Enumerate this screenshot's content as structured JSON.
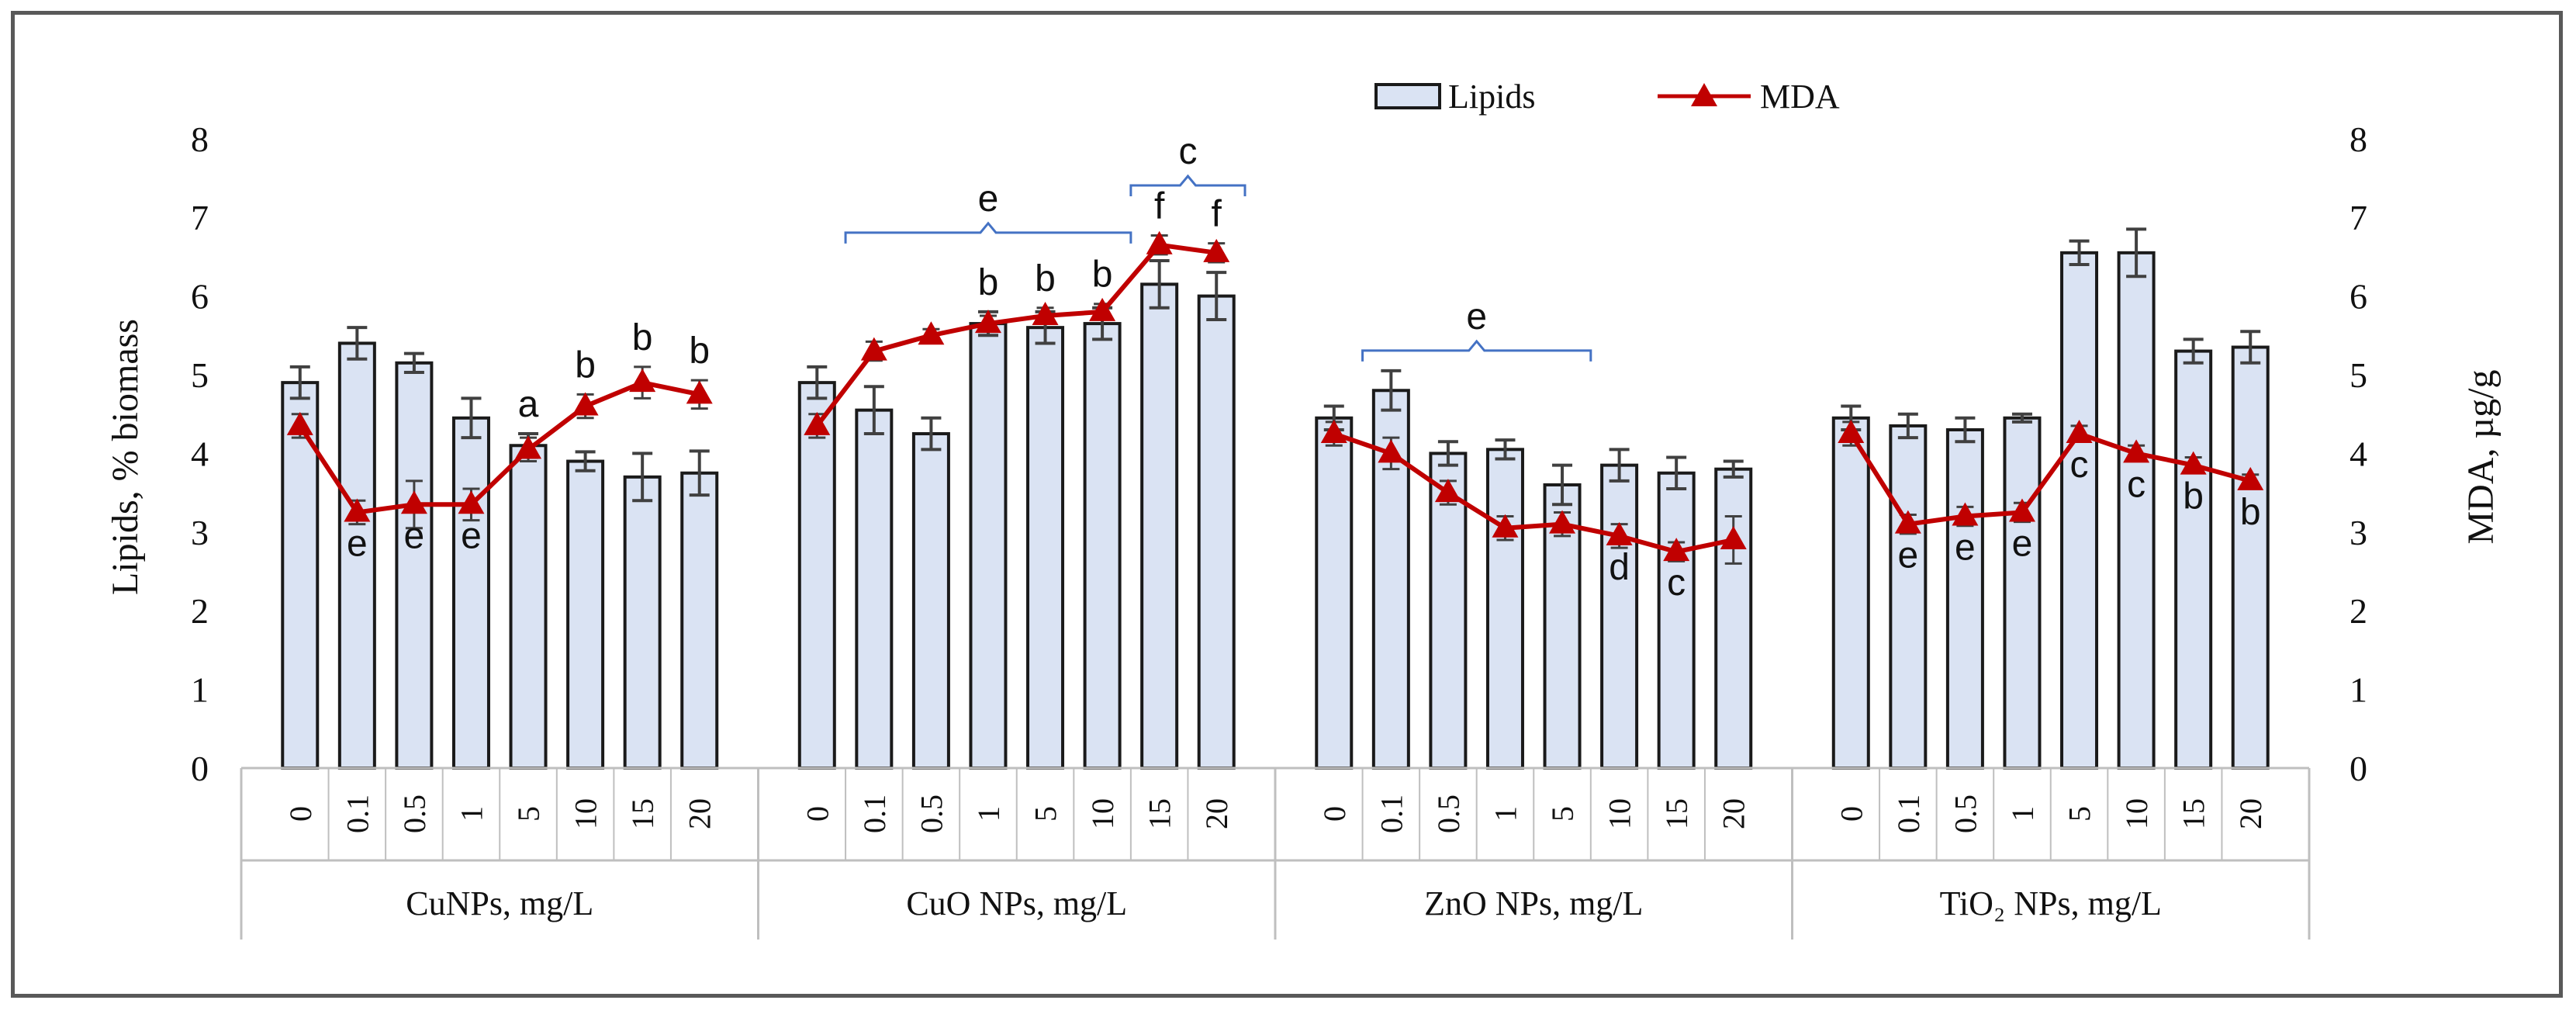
{
  "chart_data": {
    "type": "bar",
    "ylabel_left": "Lipids, % biomass",
    "ylabel_right": "MDA, µg/g",
    "ylim_left": [
      0,
      8
    ],
    "ylim_right": [
      0,
      8
    ],
    "yticks_left": [
      "0",
      "1",
      "2",
      "3",
      "4",
      "5",
      "6",
      "7",
      "8"
    ],
    "yticks_right": [
      "0",
      "1",
      "2",
      "3",
      "4",
      "5",
      "6",
      "7",
      "8"
    ],
    "grid": false,
    "legend_position": "top-center",
    "legend": {
      "bars": "Lipids",
      "line": "MDA"
    },
    "colors": {
      "bar_fill": "#DAE3F3",
      "bar_edge": "#1a1a1a",
      "line": "#C00000",
      "bracket": "#4472C4",
      "axis": "#BFBFBF"
    },
    "concentration_labels": [
      "0",
      "0.1",
      "0.5",
      "1",
      "5",
      "10",
      "15",
      "20"
    ],
    "groups": [
      {
        "name": "CuNPs, mg/L",
        "lipids": [
          4.9,
          5.4,
          5.15,
          4.45,
          4.1,
          3.9,
          3.7,
          3.75
        ],
        "lipids_err": [
          0.2,
          0.2,
          0.12,
          0.25,
          0.15,
          0.12,
          0.3,
          0.28
        ],
        "mda": [
          4.35,
          3.25,
          3.35,
          3.35,
          4.05,
          4.6,
          4.9,
          4.75
        ],
        "mda_err": [
          0.15,
          0.15,
          0.3,
          0.2,
          0.15,
          0.15,
          0.2,
          0.18
        ],
        "letters": [
          "",
          "e",
          "e",
          "e",
          "a",
          "b",
          "b",
          "b"
        ],
        "bracket": null
      },
      {
        "name": "CuO NPs, mg/L",
        "lipids": [
          4.9,
          4.55,
          4.25,
          5.65,
          5.6,
          5.65,
          6.15,
          6.0
        ],
        "lipids_err": [
          0.2,
          0.3,
          0.2,
          0.15,
          0.2,
          0.2,
          0.3,
          0.3
        ],
        "mda": [
          4.35,
          5.3,
          5.5,
          5.65,
          5.75,
          5.8,
          6.65,
          6.55
        ],
        "mda_err": [
          0.15,
          0.12,
          0.08,
          0.1,
          0.1,
          0.1,
          0.12,
          0.12
        ],
        "letters": [
          "",
          "",
          "",
          "b",
          "b",
          "b",
          "f",
          "f"
        ],
        "brackets": [
          {
            "label": "e",
            "from_index": 1,
            "to_index": 5
          },
          {
            "label": "c",
            "from_index": 6,
            "to_index": 7
          }
        ]
      },
      {
        "name": "ZnO NPs, mg/L",
        "lipids": [
          4.45,
          4.8,
          4.0,
          4.05,
          3.6,
          3.85,
          3.75,
          3.8
        ],
        "lipids_err": [
          0.15,
          0.25,
          0.15,
          0.12,
          0.25,
          0.2,
          0.2,
          0.1
        ],
        "mda": [
          4.25,
          4.0,
          3.5,
          3.05,
          3.1,
          2.95,
          2.75,
          2.9
        ],
        "mda_err": [
          0.15,
          0.2,
          0.15,
          0.15,
          0.15,
          0.15,
          0.12,
          0.3
        ],
        "letters": [
          "",
          "",
          "",
          "",
          "",
          "d",
          "c",
          ""
        ],
        "brackets": [
          {
            "label": "e",
            "from_index": 1,
            "to_index": 4
          }
        ]
      },
      {
        "name": "TiO₂ NPs, mg/L",
        "lipids": [
          4.45,
          4.35,
          4.3,
          4.45,
          6.55,
          6.55,
          5.3,
          5.35
        ],
        "lipids_err": [
          0.15,
          0.15,
          0.15,
          0.05,
          0.15,
          0.3,
          0.15,
          0.2
        ],
        "mda": [
          4.25,
          3.1,
          3.2,
          3.25,
          4.25,
          4.0,
          3.85,
          3.65
        ],
        "mda_err": [
          0.15,
          0.12,
          0.12,
          0.12,
          0.1,
          0.1,
          0.1,
          0.08
        ],
        "letters": [
          "",
          "e",
          "e",
          "e",
          "c",
          "c",
          "b",
          "b"
        ],
        "brackets": []
      }
    ]
  }
}
